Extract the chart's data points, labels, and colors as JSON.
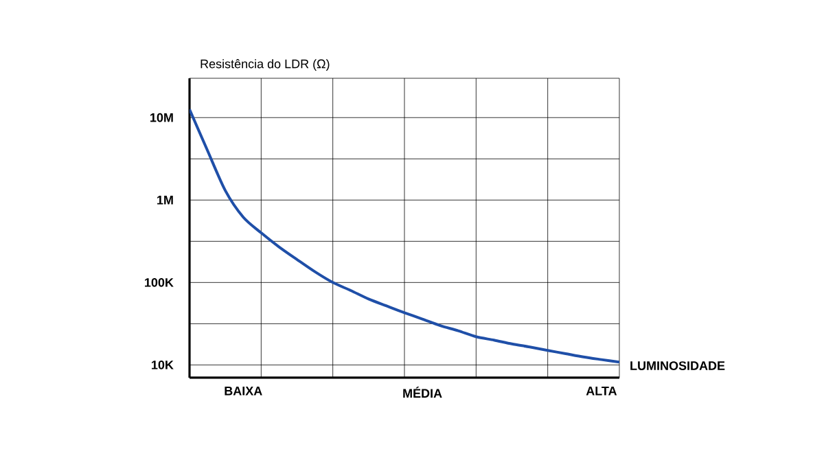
{
  "chart_data": {
    "type": "line",
    "xlabel": "LUMINOSIDADE",
    "ylabel": "Resistência do LDR (Ω)",
    "categories": [
      null,
      null,
      null,
      "BAIXA",
      null,
      null,
      null,
      null,
      null,
      null,
      null,
      null,
      null,
      "MÉDIA",
      null,
      null,
      null,
      null,
      null,
      null,
      null,
      null,
      null,
      "ALTA",
      null
    ],
    "values": [
      12600000,
      4000000,
      1300000,
      620000,
      400000,
      270000,
      190000,
      135000,
      100000,
      80000,
      63000,
      52000,
      43000,
      36000,
      30000,
      26000,
      22000,
      20000,
      18000,
      16500,
      15000,
      13700,
      12500,
      11600,
      10800
    ],
    "color": "#1f4fa8",
    "ylim": [
      7000,
      30000000
    ],
    "yticks": [
      {
        "value": 10000,
        "label": "10K"
      },
      {
        "value": 100000,
        "label": "100K"
      },
      {
        "value": 1000000,
        "label": "1M"
      },
      {
        "value": 10000000,
        "label": "10M"
      },
      {
        "value": 31600,
        "label": null
      },
      {
        "value": 316000,
        "label": null
      },
      {
        "value": 3160000,
        "label": null
      },
      {
        "value": 30000000,
        "label": null
      }
    ],
    "log": "y",
    "grid": true,
    "marker": "none",
    "line_style": "solid"
  }
}
